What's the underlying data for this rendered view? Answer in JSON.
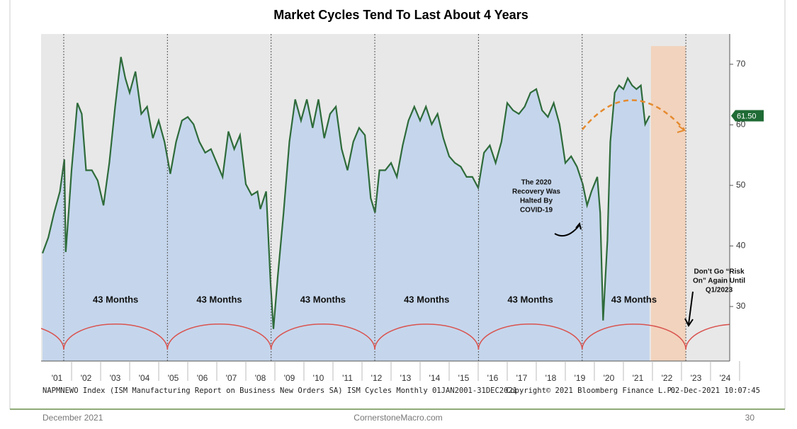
{
  "chart_data": {
    "type": "area",
    "title": "Market Cycles Tend To Last About 4 Years",
    "x": [
      2001.0,
      2001.2,
      2001.4,
      2001.6,
      2001.75,
      2001.8,
      2001.9,
      2002.0,
      2002.2,
      2002.35,
      2002.5,
      2002.7,
      2002.9,
      2003.1,
      2003.3,
      2003.5,
      2003.7,
      2003.85,
      2004.0,
      2004.2,
      2004.4,
      2004.6,
      2004.8,
      2005.0,
      2005.2,
      2005.4,
      2005.6,
      2005.8,
      2006.0,
      2006.2,
      2006.4,
      2006.6,
      2006.8,
      2007.0,
      2007.2,
      2007.4,
      2007.6,
      2007.8,
      2008.0,
      2008.2,
      2008.4,
      2008.5,
      2008.7,
      2008.85,
      2008.95,
      2009.1,
      2009.3,
      2009.5,
      2009.7,
      2009.9,
      2010.1,
      2010.3,
      2010.5,
      2010.7,
      2010.9,
      2011.1,
      2011.3,
      2011.5,
      2011.7,
      2011.9,
      2012.1,
      2012.3,
      2012.45,
      2012.6,
      2012.8,
      2013.0,
      2013.2,
      2013.4,
      2013.6,
      2013.8,
      2014.0,
      2014.2,
      2014.4,
      2014.6,
      2014.8,
      2015.0,
      2015.2,
      2015.4,
      2015.6,
      2015.8,
      2016.0,
      2016.2,
      2016.4,
      2016.6,
      2016.8,
      2017.0,
      2017.2,
      2017.4,
      2017.6,
      2017.8,
      2018.0,
      2018.2,
      2018.4,
      2018.6,
      2018.8,
      2019.0,
      2019.2,
      2019.4,
      2019.6,
      2019.75,
      2019.9,
      2020.1,
      2020.2,
      2020.3,
      2020.45,
      2020.55,
      2020.7,
      2020.85,
      2021.0,
      2021.15,
      2021.3,
      2021.45,
      2021.6,
      2021.75,
      2021.9
    ],
    "series": [
      {
        "name": "NAPMNEWO Index",
        "color": "#2e6b3a",
        "fill": "#c5d6ec",
        "values": [
          38.8,
          41.4,
          45.5,
          49,
          54.3,
          39,
          45.5,
          52.5,
          63.6,
          61.8,
          52.5,
          52.5,
          50.8,
          46.7,
          53.7,
          63,
          71.2,
          67.7,
          65.3,
          68.8,
          61.8,
          63,
          57.8,
          60.7,
          57.2,
          51.9,
          57.2,
          60.7,
          61.3,
          60.1,
          57.2,
          55.4,
          56,
          53.7,
          51.4,
          58.9,
          56,
          58.3,
          50.2,
          48.4,
          49,
          46.1,
          49,
          33.9,
          26.3,
          35,
          45.5,
          57.2,
          64.2,
          60.7,
          64.2,
          59.5,
          64.2,
          57.8,
          61.8,
          63,
          56,
          52.5,
          57.2,
          59.5,
          58.3,
          47.9,
          45.5,
          52.5,
          52.5,
          53.7,
          51.4,
          56.6,
          60.7,
          63,
          60.7,
          63,
          60.1,
          61.8,
          57.8,
          54.8,
          53.7,
          53.1,
          51.4,
          51.4,
          49.6,
          55.4,
          56.6,
          53.7,
          57.2,
          63.6,
          62.4,
          61.8,
          63,
          65.3,
          65.9,
          62.4,
          61.3,
          63.6,
          60.1,
          53.7,
          54.8,
          53.1,
          50.2,
          46.7,
          49,
          51.4,
          45.5,
          27.7,
          40.9,
          57.2,
          65.3,
          66.5,
          65.9,
          67.7,
          66.5,
          65.9,
          66.5,
          60.1,
          61.5
        ]
      }
    ],
    "current_value": {
      "value": 61.5,
      "label": "61.50"
    },
    "xlim": [
      2000.95,
      2024.66
    ],
    "ylim": [
      21,
      75
    ],
    "xticks": [
      {
        "value": 2001.5,
        "label": "'01"
      },
      {
        "value": 2002.5,
        "label": "'02"
      },
      {
        "value": 2003.5,
        "label": "'03"
      },
      {
        "value": 2004.5,
        "label": "'04"
      },
      {
        "value": 2005.5,
        "label": "'05"
      },
      {
        "value": 2006.5,
        "label": "'06"
      },
      {
        "value": 2007.5,
        "label": "'07"
      },
      {
        "value": 2008.5,
        "label": "'08"
      },
      {
        "value": 2009.5,
        "label": "'09"
      },
      {
        "value": 2010.5,
        "label": "'10"
      },
      {
        "value": 2011.5,
        "label": "'11"
      },
      {
        "value": 2012.5,
        "label": "'12"
      },
      {
        "value": 2013.5,
        "label": "'13"
      },
      {
        "value": 2014.5,
        "label": "'14"
      },
      {
        "value": 2015.5,
        "label": "'15"
      },
      {
        "value": 2016.5,
        "label": "'16"
      },
      {
        "value": 2017.5,
        "label": "'17"
      },
      {
        "value": 2018.5,
        "label": "'18"
      },
      {
        "value": 2019.5,
        "label": "'19"
      },
      {
        "value": 2020.5,
        "label": "'20"
      },
      {
        "value": 2021.5,
        "label": "'21"
      },
      {
        "value": 2022.5,
        "label": "'22"
      },
      {
        "value": 2023.5,
        "label": "'23"
      },
      {
        "value": 2024.5,
        "label": "'24"
      }
    ],
    "yticks": [
      30,
      40,
      50,
      60,
      70
    ],
    "cycle_troughs": [
      2001.73,
      2005.3,
      2008.87,
      2012.44,
      2016.01,
      2019.58,
      2023.15
    ],
    "cycle_arc_low": 22.9,
    "cycle_arc_high": 27.1,
    "cycle_color": "#d9534f",
    "cycle_labels": [
      "43 Months",
      "43 Months",
      "43 Months",
      "43 Months",
      "43 Months",
      "43 Months"
    ],
    "forecast_band": [
      2021.95,
      2023.15
    ],
    "forecast_color": "#f2d3bd",
    "annotations": [
      {
        "lines": [
          "The 2020",
          "Recovery Was",
          "Halted By",
          "COVID-19"
        ]
      },
      {
        "lines": [
          "Don’t Go “Risk",
          "On” Again Until",
          "Q1/2023"
        ]
      }
    ],
    "source": "NAPMNEWO Index (ISM Manufacturing Report on Business New Orders SA) ISM Cycles  Monthly 01JAN2001-31DEC2021",
    "copyright": "Copyright© 2021 Bloomberg Finance L.P.",
    "timestamp": "02-Dec-2021 10:07:45"
  },
  "footer": {
    "date": "December 2021",
    "site": "CornerstoneMacro.com",
    "page": "30"
  }
}
